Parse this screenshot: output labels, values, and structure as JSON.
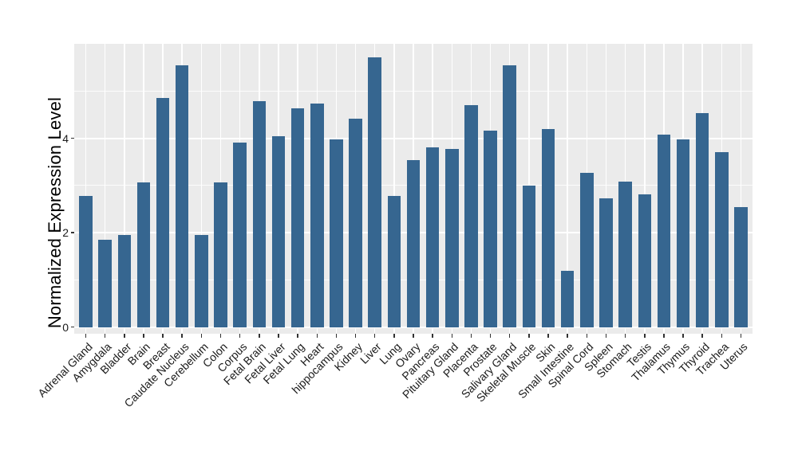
{
  "chart_data": {
    "type": "bar",
    "title": "",
    "xlabel": "",
    "ylabel": "Normalized Expression Level",
    "categories": [
      "Adrenal Gland",
      "Amygdala",
      "Bladder",
      "Brain",
      "Breast",
      "Caudate Nucleus",
      "Cerebellum",
      "Colon",
      "Corpus",
      "Fetal Brain",
      "Fetal Liver",
      "Fetal Lung",
      "Heart",
      "hippocampus",
      "Kidney",
      "Liver",
      "Lung",
      "Ovary",
      "Pancreas",
      "Pituitary Gland",
      "Placenta",
      "Prostate",
      "Salivary Gland",
      "Skeletal Muscle",
      "Skin",
      "Small Intestine",
      "Spinal Cord",
      "Spleen",
      "Stomach",
      "Testis",
      "Thalamus",
      "Thymus",
      "Thyroid",
      "Trachea",
      "Uterus"
    ],
    "values": [
      2.78,
      1.85,
      1.96,
      3.07,
      4.86,
      5.55,
      1.96,
      3.07,
      3.91,
      4.79,
      4.05,
      4.64,
      4.73,
      3.98,
      4.41,
      5.72,
      2.78,
      3.53,
      3.81,
      3.78,
      4.7,
      4.16,
      5.54,
      3.0,
      4.2,
      1.2,
      3.27,
      2.73,
      3.08,
      2.81,
      4.07,
      3.97,
      4.54,
      3.71,
      2.55
    ],
    "ylim": [
      -0.14,
      6.0
    ],
    "y_major_ticks": [
      0,
      2,
      4
    ],
    "y_minor_gridlines": [
      1,
      3,
      5
    ],
    "x_tick_angle_deg": 45,
    "grid": "on",
    "legend": "none",
    "colors": {
      "bar_fill": "#366690",
      "panel_background": "#EBEBEB",
      "gridline_major": "#FFFFFF",
      "gridline_minor": "#FFFFFF",
      "tick_mark": "#333333",
      "tick_label": "#1A1A1A",
      "axis_title": "#000000",
      "figure_background": "#FFFFFF"
    }
  }
}
